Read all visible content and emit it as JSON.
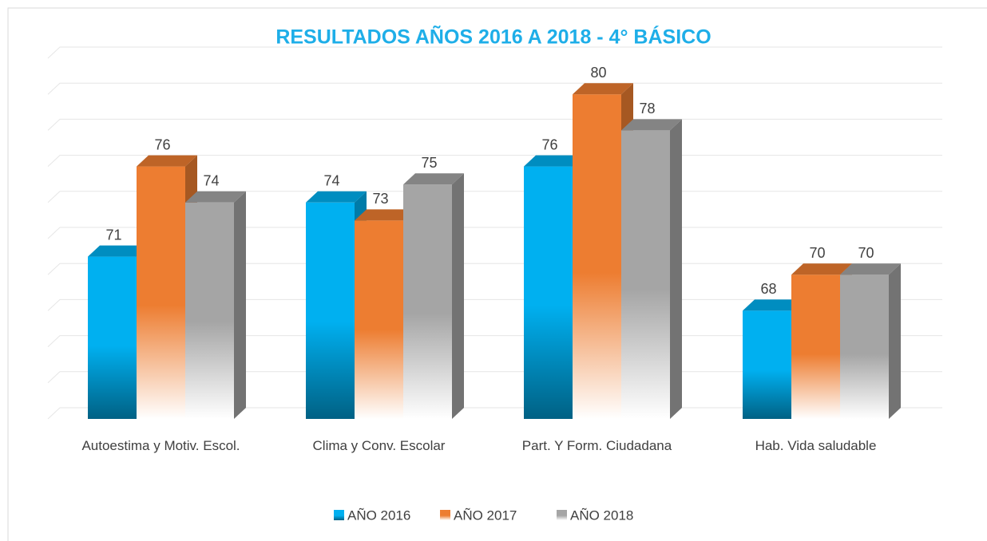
{
  "chart_data": {
    "type": "bar3d",
    "title": "RESULTADOS AÑOS 2016 A 2018 - 4° BÁSICO",
    "categories": [
      "Autoestima y Motiv. Escol.",
      "Clima y Conv. Escolar",
      "Part. Y Form. Ciudadana",
      "Hab. Vida saludable"
    ],
    "series": [
      {
        "name": "AÑO 2016",
        "color": "#00b0f0",
        "values": [
          71,
          74,
          76,
          68
        ]
      },
      {
        "name": "AÑO 2017",
        "color": "#ed7d31",
        "values": [
          76,
          73,
          80,
          70
        ]
      },
      {
        "name": "AÑO 2018",
        "color": "#a5a5a5",
        "values": [
          74,
          75,
          78,
          70
        ]
      }
    ],
    "ylim": [
      62,
      82
    ],
    "yticks": [
      62,
      64,
      66,
      68,
      70,
      72,
      74,
      76,
      78,
      80,
      82
    ],
    "grid": true,
    "legend": "bottom"
  }
}
